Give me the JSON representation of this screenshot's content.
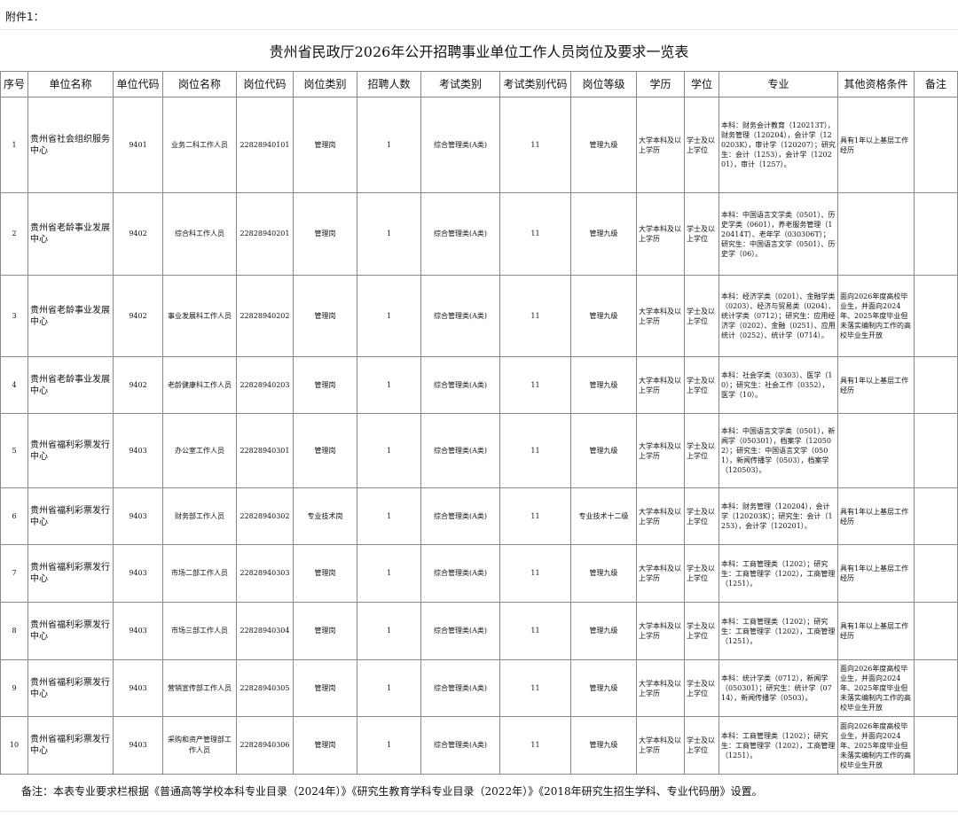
{
  "annex_label": "附件1：",
  "title": "贵州省民政厅2026年公开招聘事业单位工作人员岗位及要求一览表",
  "headers": [
    "序号",
    "单位名称",
    "单位代码",
    "岗位名称",
    "岗位代码",
    "岗位类别",
    "招聘人数",
    "考试类别",
    "考试类别代码",
    "岗位等级",
    "学历",
    "学位",
    "专业",
    "其他资格条件",
    "备注"
  ],
  "rows": [
    [
      "1",
      "贵州省社会组织服务中心",
      "9401",
      "业务二科工作人员",
      "22828940101",
      "管理岗",
      "1",
      "综合管理类(A类)",
      "11",
      "管理九级",
      "大学本科及以上学历",
      "学士及以上学位",
      "本科：财务会计教育（120213T），财务管理（120204），会计学（120203K），审计学（120207）；研究生：会计（1253），会计学（120201），审计（1257）。",
      "具有1年以上基层工作经历",
      ""
    ],
    [
      "2",
      "贵州省老龄事业发展中心",
      "9402",
      "综合科工作人员",
      "22828940201",
      "管理岗",
      "1",
      "综合管理类(A类)",
      "11",
      "管理九级",
      "大学本科及以上学历",
      "学士及以上学位",
      "本科：中国语言文学类（0501）、历史学类（0601），养老服务管理（120414T）、老年学（030306T）；研究生：中国语言文学（0501）、历史学（06）。",
      "",
      ""
    ],
    [
      "3",
      "贵州省老龄事业发展中心",
      "9402",
      "事业发展科工作人员",
      "22828940202",
      "管理岗",
      "1",
      "综合管理类(A类)",
      "11",
      "管理九级",
      "大学本科及以上学历",
      "学士及以上学位",
      "本科：经济学类（0201）、金融学类（0203）、经济与贸易类（0204）、统计学类（0712）；研究生：应用经济学（0202）、金融（0251）、应用统计（0252）、统计学（0714）。",
      "面向2026年度高校毕业生，并面向2024年、2025年度毕业但未落实编制内工作的高校毕业生开放",
      ""
    ],
    [
      "4",
      "贵州省老龄事业发展中心",
      "9402",
      "老龄健康科工作人员",
      "22828940203",
      "管理岗",
      "1",
      "综合管理类(A类)",
      "11",
      "管理九级",
      "大学本科及以上学历",
      "学士及以上学位",
      "本科：社会学类（0303）、医学（10）；研究生：社会工作（0352），医学（10）。",
      "具有1年以上基层工作经历",
      ""
    ],
    [
      "5",
      "贵州省福利彩票发行中心",
      "9403",
      "办公室工作人员",
      "22828940301",
      "管理岗",
      "1",
      "综合管理类(A类)",
      "11",
      "管理九级",
      "大学本科及以上学历",
      "学士及以上学位",
      "本科：中国语言文学类（0501），新闻学（050301），档案学（120502）；研究生：中国语言文学（0501），新闻传播学（0503），档案学（120503）。",
      "",
      ""
    ],
    [
      "6",
      "贵州省福利彩票发行中心",
      "9403",
      "财务部工作人员",
      "22828940302",
      "专业技术岗",
      "1",
      "综合管理类(A类)",
      "11",
      "专业技术十二级",
      "大学本科及以上学历",
      "学士及以上学位",
      "本科：财务管理（120204），会计学（120203K）；研究生：会计（1253），会计学（120201）。",
      "具有1年以上基层工作经历",
      ""
    ],
    [
      "7",
      "贵州省福利彩票发行中心",
      "9403",
      "市场二部工作人员",
      "22828940303",
      "管理岗",
      "1",
      "综合管理类(A类)",
      "11",
      "管理九级",
      "大学本科及以上学历",
      "学士及以上学位",
      "本科：工商管理类（1202）；研究生：工商管理学（1202），工商管理（1251）。",
      "具有1年以上基层工作经历",
      ""
    ],
    [
      "8",
      "贵州省福利彩票发行中心",
      "9403",
      "市场三部工作人员",
      "22828940304",
      "管理岗",
      "1",
      "综合管理类(A类)",
      "11",
      "管理九级",
      "大学本科及以上学历",
      "学士及以上学位",
      "本科：工商管理类（1202）；研究生：工商管理学（1202），工商管理（1251）。",
      "具有1年以上基层工作经历",
      ""
    ],
    [
      "9",
      "贵州省福利彩票发行中心",
      "9403",
      "营销宣传部工作人员",
      "22828940305",
      "管理岗",
      "1",
      "综合管理类(A类)",
      "11",
      "管理九级",
      "大学本科及以上学历",
      "学士及以上学位",
      "本科：统计学类（0712），新闻学（050301）；研究生：统计学（0714），新闻传播学（0503）。",
      "面向2026年度高校毕业生，并面向2024年、2025年度毕业但未落实编制内工作的高校毕业生开放",
      ""
    ],
    [
      "10",
      "贵州省福利彩票发行中心",
      "9403",
      "采购和资产管理部工作人员",
      "22828940306",
      "管理岗",
      "1",
      "综合管理类(A类)",
      "11",
      "管理九级",
      "大学本科及以上学历",
      "学士及以上学位",
      "本科：工商管理类（1202）；研究生：工商管理学（1202），工商管理（1251）。",
      "面向2026年度高校毕业生，并面向2024年、2025年度毕业但未落实编制内工作的高校毕业生开放",
      ""
    ]
  ],
  "footer_note": "备注：本表专业要求栏根据《普通高等学校本科专业目录（2024年）》《研究生教育学科专业目录（2022年）》《2018年研究生招生学科、专业代码册》设置。"
}
